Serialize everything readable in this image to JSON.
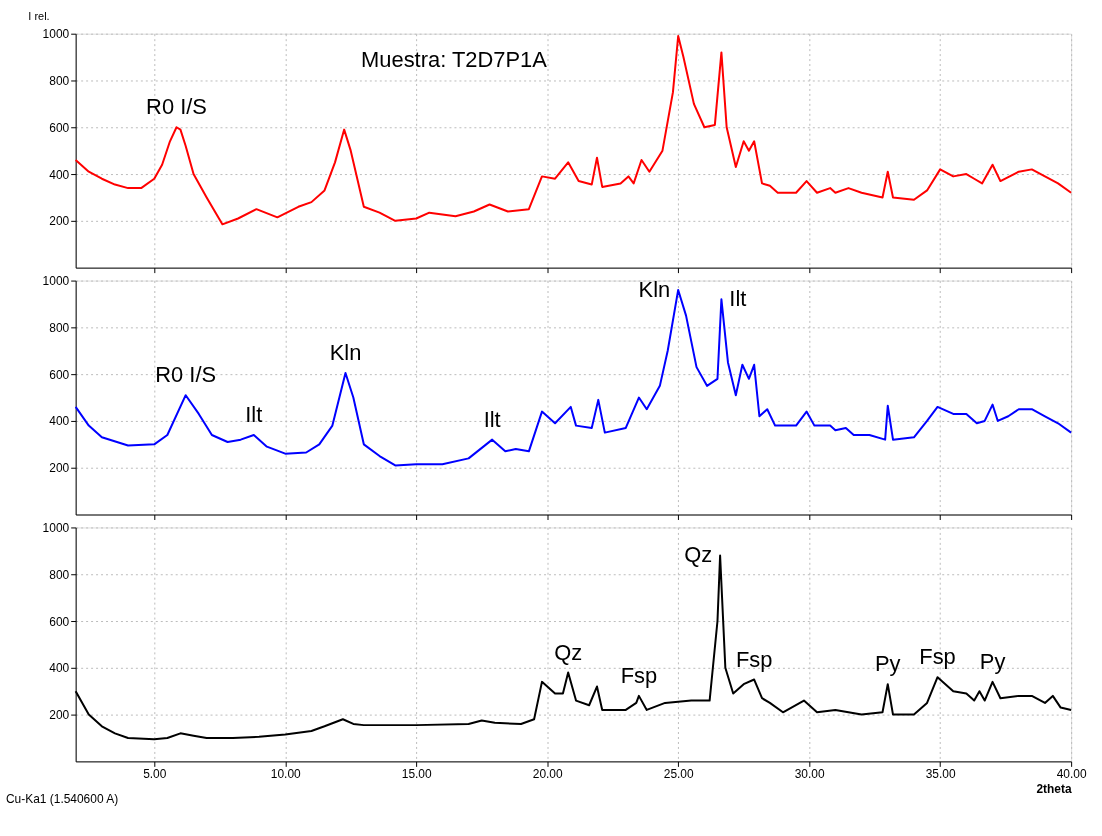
{
  "chart_data": [
    {
      "type": "line",
      "ylabel": "I rel.",
      "xlim": [
        2,
        40
      ],
      "ylim": [
        0,
        1000
      ],
      "yticks": [
        200,
        400,
        600,
        800,
        1000
      ],
      "xticks": [
        5,
        10,
        15,
        20,
        25,
        30,
        35,
        40
      ],
      "grid": true,
      "tick_labels": "y",
      "annotations": [
        "Muestra: T2D7P1A",
        {
          "text": "R0 I/S",
          "x": 5.85,
          "y": 600
        }
      ],
      "series": [
        {
          "color": "#ff0000",
          "x": [
            2.0,
            2.5,
            3,
            3.5,
            4,
            4.5,
            5.0,
            5.3,
            5.6,
            5.85,
            6.0,
            6.2,
            6.5,
            7.0,
            7.6,
            8.2,
            8.9,
            9.7,
            10.5,
            11.0,
            11.5,
            11.9,
            12.25,
            12.5,
            13,
            13.6,
            14.2,
            15.0,
            15.5,
            16.5,
            17.2,
            17.8,
            18.5,
            19.3,
            19.8,
            20.3,
            20.8,
            21.2,
            21.7,
            21.9,
            22.1,
            22.8,
            23.1,
            23.3,
            23.6,
            23.9,
            24.4,
            24.8,
            25.0,
            25.2,
            25.6,
            26.0,
            26.4,
            26.65,
            26.85,
            27.2,
            27.5,
            27.7,
            27.9,
            28.2,
            28.5,
            28.8,
            29.5,
            29.9,
            30.3,
            30.8,
            31.0,
            31.5,
            32,
            32.8,
            33.0,
            33.2,
            34,
            34.5,
            35.0,
            35.5,
            36,
            36.3,
            36.6,
            37.0,
            37.3,
            38.0,
            38.5,
            39,
            39.5,
            40
          ],
          "values": [
            460,
            410,
            380,
            355,
            340,
            340,
            380,
            440,
            540,
            600,
            590,
            520,
            400,
            300,
            185,
            210,
            250,
            215,
            260,
            280,
            330,
            450,
            590,
            500,
            260,
            235,
            200,
            210,
            235,
            220,
            240,
            270,
            240,
            250,
            390,
            380,
            450,
            370,
            355,
            470,
            345,
            360,
            390,
            360,
            460,
            410,
            500,
            750,
            990,
            900,
            700,
            600,
            610,
            920,
            600,
            430,
            540,
            500,
            540,
            360,
            350,
            320,
            320,
            370,
            320,
            340,
            320,
            340,
            320,
            300,
            410,
            300,
            290,
            330,
            420,
            390,
            400,
            380,
            360,
            440,
            370,
            410,
            420,
            390,
            360,
            320
          ]
        }
      ]
    },
    {
      "type": "line",
      "xlim": [
        2,
        40
      ],
      "ylim": [
        0,
        1000
      ],
      "yticks": [
        200,
        400,
        600,
        800,
        1000
      ],
      "xticks": [
        5,
        10,
        15,
        20,
        25,
        30,
        35,
        40
      ],
      "grid": true,
      "tick_labels": "y",
      "annotations": [
        {
          "text": "R0 I/S",
          "x": 6.2,
          "y": 510
        },
        {
          "text": "Ilt",
          "x": 8.8,
          "y": 340
        },
        {
          "text": "Kln",
          "x": 12.3,
          "y": 605
        },
        {
          "text": "Ilt",
          "x": 17.9,
          "y": 320
        },
        {
          "text": "Kln",
          "x": 25.0,
          "y": 960
        },
        {
          "text": "Ilt",
          "x": 26.65,
          "y": 920
        }
      ],
      "series": [
        {
          "color": "#0000ff",
          "x": [
            2.0,
            2.5,
            3,
            4,
            5,
            5.5,
            6.2,
            6.7,
            7.2,
            7.8,
            8.3,
            8.8,
            9.3,
            10,
            10.8,
            11.3,
            11.8,
            12.3,
            12.6,
            13,
            13.6,
            14.2,
            15,
            16,
            17,
            17.9,
            18.4,
            18.8,
            19.3,
            19.8,
            20.3,
            20.9,
            21.1,
            21.7,
            21.95,
            22.2,
            23,
            23.5,
            23.8,
            24.3,
            24.6,
            25.0,
            25.3,
            25.7,
            26.1,
            26.5,
            26.65,
            26.9,
            27.2,
            27.45,
            27.7,
            27.9,
            28.1,
            28.4,
            28.7,
            29.5,
            29.9,
            30.2,
            30.8,
            31,
            31.4,
            31.7,
            32.3,
            32.9,
            33.0,
            33.2,
            34,
            34.5,
            34.9,
            35.5,
            36,
            36.4,
            36.7,
            37.0,
            37.2,
            37.6,
            38,
            38.5,
            39,
            39.5,
            40
          ],
          "values": [
            460,
            380,
            330,
            295,
            300,
            340,
            510,
            430,
            340,
            310,
            320,
            340,
            290,
            260,
            265,
            300,
            380,
            605,
            500,
            300,
            250,
            210,
            215,
            215,
            240,
            320,
            270,
            280,
            270,
            440,
            390,
            460,
            380,
            370,
            490,
            350,
            370,
            500,
            450,
            550,
            700,
            960,
            850,
            630,
            550,
            580,
            920,
            650,
            510,
            640,
            580,
            640,
            420,
            450,
            380,
            380,
            440,
            380,
            380,
            360,
            370,
            340,
            340,
            320,
            465,
            320,
            330,
            400,
            460,
            430,
            430,
            390,
            400,
            470,
            400,
            420,
            450,
            450,
            420,
            390,
            350
          ]
        }
      ]
    },
    {
      "type": "line",
      "xlabel": "2theta",
      "xlim": [
        2,
        40
      ],
      "ylim": [
        0,
        1000
      ],
      "yticks": [
        200,
        400,
        600,
        800,
        1000
      ],
      "xticks": [
        {
          "value": 5,
          "label": "5.00"
        },
        {
          "value": 10,
          "label": "10.00"
        },
        {
          "value": 15,
          "label": "15.00"
        },
        {
          "value": 20,
          "label": "20.00"
        },
        {
          "value": 25,
          "label": "25.00"
        },
        {
          "value": 30,
          "label": "30.00"
        },
        {
          "value": 35,
          "label": "35.00"
        },
        {
          "value": 40,
          "label": "40.00"
        }
      ],
      "grid": true,
      "annotations": [
        "Cu-Ka1 (1.540600 A)",
        {
          "text": "Qz",
          "x": 20.8,
          "y": 380
        },
        {
          "text": "Fsp",
          "x": 23.5,
          "y": 280
        },
        {
          "text": "Qz",
          "x": 26.6,
          "y": 880
        },
        {
          "text": "Fsp",
          "x": 27.9,
          "y": 350
        },
        {
          "text": "Py",
          "x": 33.0,
          "y": 330
        },
        {
          "text": "Fsp",
          "x": 34.9,
          "y": 360
        },
        {
          "text": "Py",
          "x": 37.0,
          "y": 340
        }
      ],
      "series": [
        {
          "color": "#000000",
          "x": [
            2,
            2.5,
            3,
            3.5,
            4,
            5,
            5.5,
            6,
            6.5,
            7,
            8,
            9,
            10,
            11,
            11.5,
            12.2,
            12.6,
            13,
            15,
            17,
            17.5,
            18,
            19,
            19.5,
            19.8,
            20.3,
            20.6,
            20.8,
            21.1,
            21.6,
            21.9,
            22.1,
            23,
            23.4,
            23.5,
            23.8,
            24.5,
            25.5,
            26.2,
            26.5,
            26.6,
            26.8,
            27.1,
            27.5,
            27.9,
            28.2,
            28.5,
            29,
            29.8,
            30.3,
            31,
            32,
            32.8,
            33.0,
            33.2,
            34,
            34.5,
            34.9,
            35.5,
            36,
            36.3,
            36.5,
            36.7,
            37.0,
            37.3,
            38,
            38.5,
            39,
            39.3,
            39.6,
            40
          ],
          "values": [
            300,
            200,
            150,
            120,
            100,
            95,
            100,
            120,
            110,
            100,
            100,
            105,
            115,
            130,
            150,
            180,
            160,
            155,
            155,
            160,
            175,
            165,
            160,
            180,
            340,
            290,
            290,
            380,
            260,
            240,
            320,
            220,
            220,
            250,
            280,
            220,
            250,
            260,
            260,
            600,
            880,
            400,
            290,
            330,
            350,
            270,
            250,
            210,
            260,
            210,
            220,
            200,
            210,
            330,
            200,
            200,
            250,
            360,
            300,
            290,
            260,
            300,
            260,
            340,
            270,
            280,
            280,
            250,
            280,
            230,
            220
          ]
        }
      ]
    }
  ]
}
